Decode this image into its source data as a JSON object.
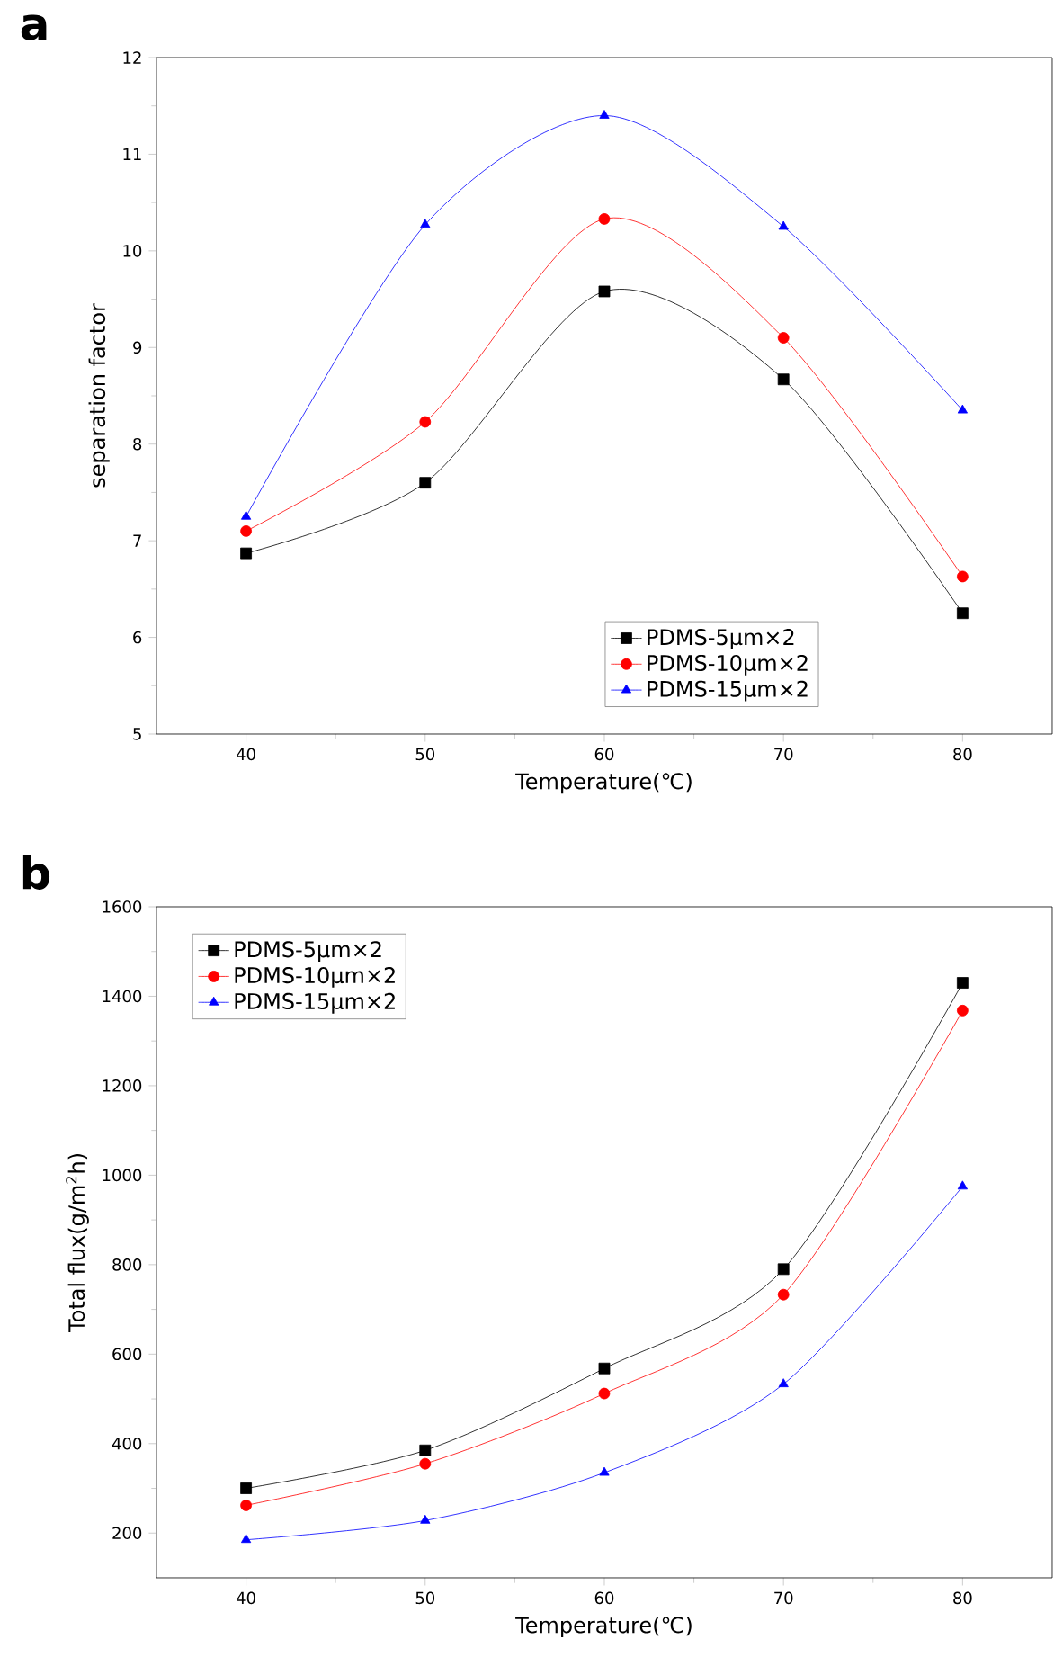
{
  "chart_data": [
    {
      "type": "line",
      "title": "a",
      "xlabel": "Temperature(℃)",
      "ylabel": "separation factor",
      "x": [
        40,
        50,
        60,
        70,
        80
      ],
      "xlim": [
        35,
        85
      ],
      "xticks": [
        40,
        50,
        60,
        70,
        80
      ],
      "ylim": [
        5,
        12
      ],
      "yticks": [
        5,
        6,
        7,
        8,
        9,
        10,
        11,
        12
      ],
      "legend": "bottom",
      "grid": false,
      "series": [
        {
          "name": "PDMS-5μm×2",
          "color": "#000000",
          "marker": "square",
          "values": [
            6.87,
            7.6,
            9.58,
            8.67,
            6.25
          ]
        },
        {
          "name": "PDMS-10μm×2",
          "color": "#ff0000",
          "marker": "circle",
          "values": [
            7.1,
            8.23,
            10.33,
            9.1,
            6.63
          ]
        },
        {
          "name": "PDMS-15μm×2",
          "color": "#0000ff",
          "marker": "triangle",
          "values": [
            7.25,
            10.27,
            11.4,
            10.25,
            8.35
          ]
        }
      ]
    },
    {
      "type": "line",
      "title": "b",
      "xlabel": "Temperature(℃)",
      "ylabel": "Total flux(g/m$^{2}$h)",
      "x": [
        40,
        50,
        60,
        70,
        80
      ],
      "xlim": [
        35,
        85
      ],
      "xticks": [
        40,
        50,
        60,
        70,
        80
      ],
      "ylim": [
        100,
        1600
      ],
      "yticks": [
        200,
        400,
        600,
        800,
        1000,
        1200,
        1400,
        1600
      ],
      "legend": "top left",
      "grid": false,
      "series": [
        {
          "name": "PDMS-5μm×2",
          "color": "#000000",
          "marker": "square",
          "values": [
            300,
            385,
            568,
            790,
            1430
          ]
        },
        {
          "name": "PDMS-10μm×2",
          "color": "#ff0000",
          "marker": "circle",
          "values": [
            262,
            355,
            512,
            733,
            1368
          ]
        },
        {
          "name": "PDMS-15μm×2",
          "color": "#0000ff",
          "marker": "triangle",
          "values": [
            185,
            228,
            335,
            533,
            975
          ]
        }
      ]
    }
  ]
}
